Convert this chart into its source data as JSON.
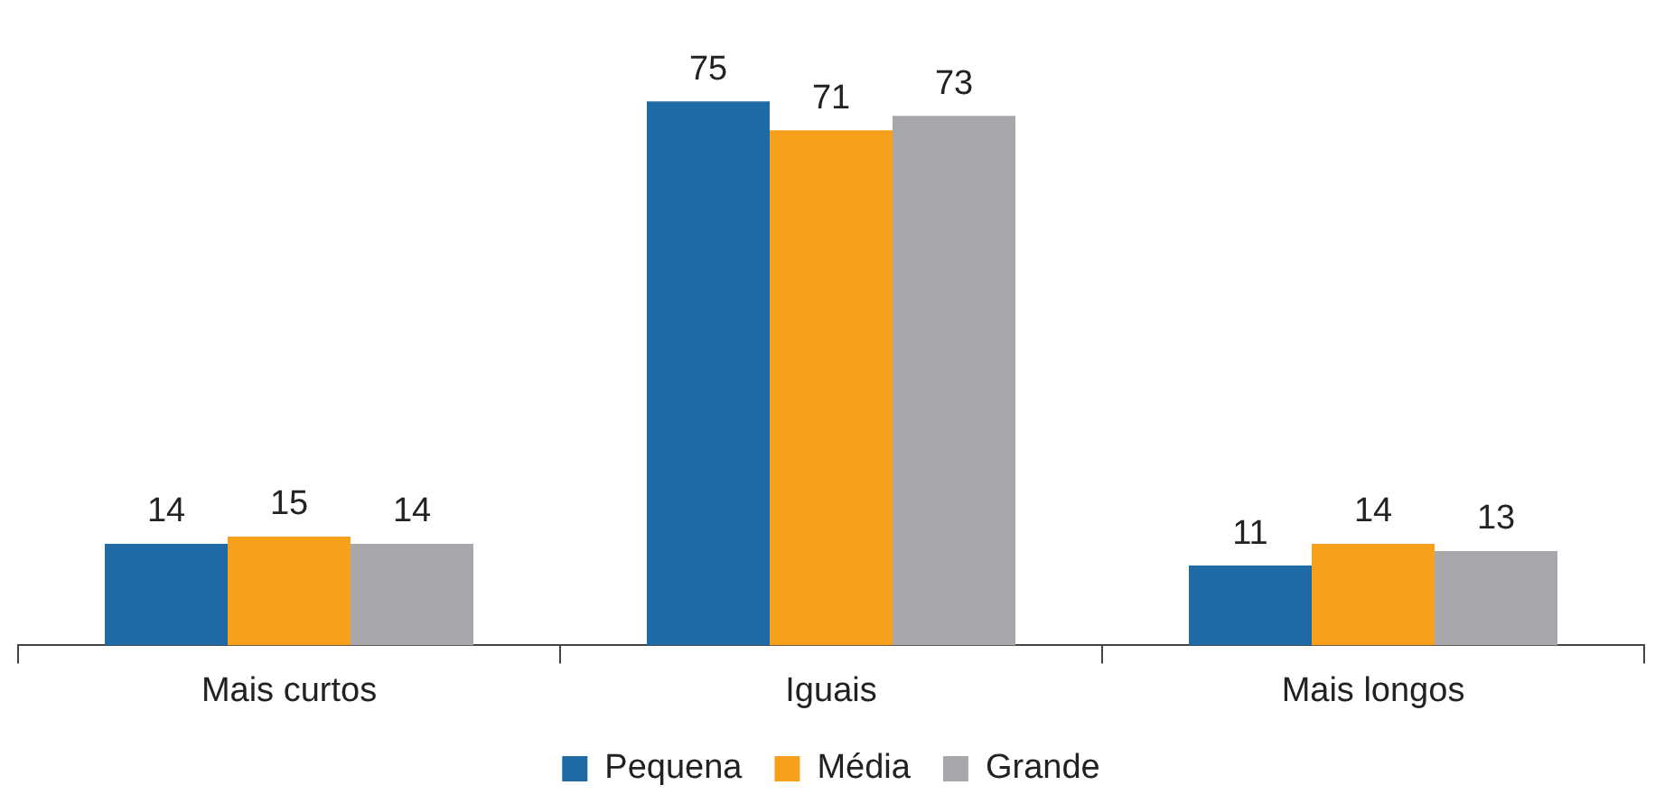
{
  "chart_data": {
    "type": "bar",
    "categories": [
      "Mais curtos",
      "Iguais",
      "Mais longos"
    ],
    "series": [
      {
        "name": "Pequena",
        "color": "#1f6aa5",
        "values": [
          14,
          75,
          11
        ]
      },
      {
        "name": "Média",
        "color": "#f7a01c",
        "values": [
          15,
          71,
          14
        ]
      },
      {
        "name": "Grande",
        "color": "#a7a8ab",
        "values": [
          14,
          73,
          13
        ]
      }
    ],
    "data_labels": true,
    "legend": "bottom",
    "grid": false
  }
}
